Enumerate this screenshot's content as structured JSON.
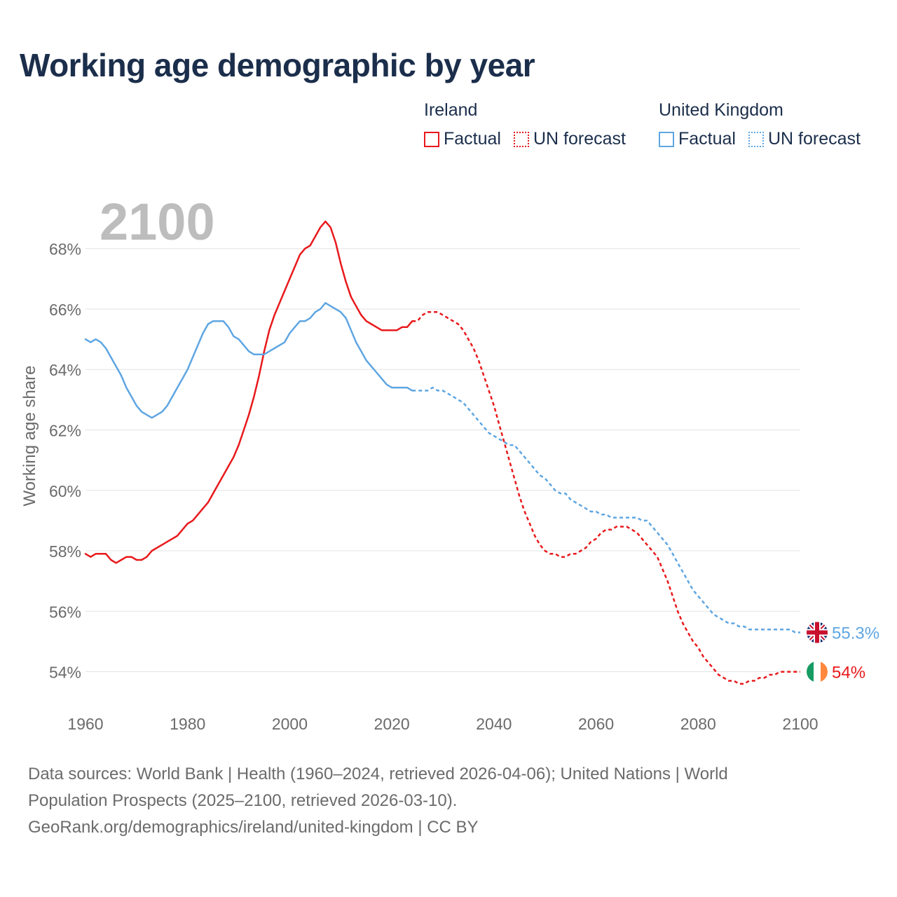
{
  "title": "Working age demographic by year",
  "legend": {
    "groups": [
      {
        "name": "Ireland",
        "color": "#e8191c",
        "factual_label": "Factual",
        "forecast_label": "UN forecast"
      },
      {
        "name": "United Kingdom",
        "color": "#5fa6e2",
        "factual_label": "Factual",
        "forecast_label": "UN forecast"
      }
    ]
  },
  "footer": {
    "line1": "Data sources: World Bank | Health (1960–2024, retrieved 2026-04-06); United Nations | World",
    "line2": "Population Prospects (2025–2100, retrieved 2026-03-10).",
    "line3": "GeoRank.org/demographics/ireland/united-kingdom | CC BY"
  },
  "chart_data": {
    "type": "line",
    "title": "Working age demographic by year",
    "ylabel": "Working age share",
    "xlabel": "",
    "year_label": "2100",
    "xlim": [
      1960,
      2100
    ],
    "ylim": [
      52.9,
      69.5
    ],
    "x_ticks": [
      1960,
      1980,
      2000,
      2020,
      2040,
      2060,
      2080,
      2100
    ],
    "y_ticks": [
      54,
      56,
      58,
      60,
      62,
      64,
      66,
      68
    ],
    "y_tick_suffix": "%",
    "gridlines": true,
    "series": [
      {
        "name": "Ireland",
        "color": "#e8191c",
        "end_label": "54%",
        "flag": "ireland-flag",
        "factual": [
          [
            1960,
            57.9
          ],
          [
            1961,
            57.8
          ],
          [
            1962,
            57.9
          ],
          [
            1963,
            57.9
          ],
          [
            1964,
            57.9
          ],
          [
            1965,
            57.7
          ],
          [
            1966,
            57.6
          ],
          [
            1967,
            57.7
          ],
          [
            1968,
            57.8
          ],
          [
            1969,
            57.8
          ],
          [
            1970,
            57.7
          ],
          [
            1971,
            57.7
          ],
          [
            1972,
            57.8
          ],
          [
            1973,
            58.0
          ],
          [
            1974,
            58.1
          ],
          [
            1975,
            58.2
          ],
          [
            1976,
            58.3
          ],
          [
            1977,
            58.4
          ],
          [
            1978,
            58.5
          ],
          [
            1979,
            58.7
          ],
          [
            1980,
            58.9
          ],
          [
            1981,
            59.0
          ],
          [
            1982,
            59.2
          ],
          [
            1983,
            59.4
          ],
          [
            1984,
            59.6
          ],
          [
            1985,
            59.9
          ],
          [
            1986,
            60.2
          ],
          [
            1987,
            60.5
          ],
          [
            1988,
            60.8
          ],
          [
            1989,
            61.1
          ],
          [
            1990,
            61.5
          ],
          [
            1991,
            62.0
          ],
          [
            1992,
            62.5
          ],
          [
            1993,
            63.1
          ],
          [
            1994,
            63.8
          ],
          [
            1995,
            64.6
          ],
          [
            1996,
            65.3
          ],
          [
            1997,
            65.8
          ],
          [
            1998,
            66.2
          ],
          [
            1999,
            66.6
          ],
          [
            2000,
            67.0
          ],
          [
            2001,
            67.4
          ],
          [
            2002,
            67.8
          ],
          [
            2003,
            68.0
          ],
          [
            2004,
            68.1
          ],
          [
            2005,
            68.4
          ],
          [
            2006,
            68.7
          ],
          [
            2007,
            68.9
          ],
          [
            2008,
            68.7
          ],
          [
            2009,
            68.2
          ],
          [
            2010,
            67.5
          ],
          [
            2011,
            66.9
          ],
          [
            2012,
            66.4
          ],
          [
            2013,
            66.1
          ],
          [
            2014,
            65.8
          ],
          [
            2015,
            65.6
          ],
          [
            2016,
            65.5
          ],
          [
            2017,
            65.4
          ],
          [
            2018,
            65.3
          ],
          [
            2019,
            65.3
          ],
          [
            2020,
            65.3
          ],
          [
            2021,
            65.3
          ],
          [
            2022,
            65.4
          ],
          [
            2023,
            65.4
          ],
          [
            2024,
            65.6
          ]
        ],
        "forecast": [
          [
            2024,
            65.6
          ],
          [
            2025,
            65.6
          ],
          [
            2026,
            65.8
          ],
          [
            2027,
            65.9
          ],
          [
            2028,
            65.9
          ],
          [
            2029,
            65.9
          ],
          [
            2030,
            65.8
          ],
          [
            2031,
            65.7
          ],
          [
            2032,
            65.6
          ],
          [
            2033,
            65.5
          ],
          [
            2034,
            65.3
          ],
          [
            2035,
            65.0
          ],
          [
            2036,
            64.7
          ],
          [
            2037,
            64.3
          ],
          [
            2038,
            63.8
          ],
          [
            2039,
            63.3
          ],
          [
            2040,
            62.8
          ],
          [
            2041,
            62.2
          ],
          [
            2042,
            61.6
          ],
          [
            2043,
            61.0
          ],
          [
            2044,
            60.4
          ],
          [
            2045,
            59.8
          ],
          [
            2046,
            59.3
          ],
          [
            2047,
            58.9
          ],
          [
            2048,
            58.5
          ],
          [
            2049,
            58.2
          ],
          [
            2050,
            58.0
          ],
          [
            2051,
            57.9
          ],
          [
            2052,
            57.9
          ],
          [
            2053,
            57.8
          ],
          [
            2054,
            57.8
          ],
          [
            2055,
            57.9
          ],
          [
            2056,
            57.9
          ],
          [
            2057,
            58.0
          ],
          [
            2058,
            58.1
          ],
          [
            2059,
            58.3
          ],
          [
            2060,
            58.4
          ],
          [
            2061,
            58.6
          ],
          [
            2062,
            58.7
          ],
          [
            2063,
            58.7
          ],
          [
            2064,
            58.8
          ],
          [
            2065,
            58.8
          ],
          [
            2066,
            58.8
          ],
          [
            2067,
            58.7
          ],
          [
            2068,
            58.6
          ],
          [
            2069,
            58.4
          ],
          [
            2070,
            58.2
          ],
          [
            2071,
            58.0
          ],
          [
            2072,
            57.8
          ],
          [
            2073,
            57.4
          ],
          [
            2074,
            57.0
          ],
          [
            2075,
            56.5
          ],
          [
            2076,
            56.0
          ],
          [
            2077,
            55.6
          ],
          [
            2078,
            55.3
          ],
          [
            2079,
            55.0
          ],
          [
            2080,
            54.8
          ],
          [
            2081,
            54.5
          ],
          [
            2082,
            54.3
          ],
          [
            2083,
            54.1
          ],
          [
            2084,
            53.9
          ],
          [
            2085,
            53.8
          ],
          [
            2086,
            53.7
          ],
          [
            2087,
            53.7
          ],
          [
            2088,
            53.6
          ],
          [
            2089,
            53.6
          ],
          [
            2090,
            53.7
          ],
          [
            2091,
            53.7
          ],
          [
            2092,
            53.8
          ],
          [
            2093,
            53.8
          ],
          [
            2094,
            53.9
          ],
          [
            2095,
            53.9
          ],
          [
            2096,
            54.0
          ],
          [
            2097,
            54.0
          ],
          [
            2098,
            54.0
          ],
          [
            2099,
            54.0
          ],
          [
            2100,
            54.0
          ]
        ]
      },
      {
        "name": "United Kingdom",
        "color": "#5fa6e2",
        "end_label": "55.3%",
        "flag": "united-kingdom-flag",
        "factual": [
          [
            1960,
            65.0
          ],
          [
            1961,
            64.9
          ],
          [
            1962,
            65.0
          ],
          [
            1963,
            64.9
          ],
          [
            1964,
            64.7
          ],
          [
            1965,
            64.4
          ],
          [
            1966,
            64.1
          ],
          [
            1967,
            63.8
          ],
          [
            1968,
            63.4
          ],
          [
            1969,
            63.1
          ],
          [
            1970,
            62.8
          ],
          [
            1971,
            62.6
          ],
          [
            1972,
            62.5
          ],
          [
            1973,
            62.4
          ],
          [
            1974,
            62.5
          ],
          [
            1975,
            62.6
          ],
          [
            1976,
            62.8
          ],
          [
            1977,
            63.1
          ],
          [
            1978,
            63.4
          ],
          [
            1979,
            63.7
          ],
          [
            1980,
            64.0
          ],
          [
            1981,
            64.4
          ],
          [
            1982,
            64.8
          ],
          [
            1983,
            65.2
          ],
          [
            1984,
            65.5
          ],
          [
            1985,
            65.6
          ],
          [
            1986,
            65.6
          ],
          [
            1987,
            65.6
          ],
          [
            1988,
            65.4
          ],
          [
            1989,
            65.1
          ],
          [
            1990,
            65.0
          ],
          [
            1991,
            64.8
          ],
          [
            1992,
            64.6
          ],
          [
            1993,
            64.5
          ],
          [
            1994,
            64.5
          ],
          [
            1995,
            64.5
          ],
          [
            1996,
            64.6
          ],
          [
            1997,
            64.7
          ],
          [
            1998,
            64.8
          ],
          [
            1999,
            64.9
          ],
          [
            2000,
            65.2
          ],
          [
            2001,
            65.4
          ],
          [
            2002,
            65.6
          ],
          [
            2003,
            65.6
          ],
          [
            2004,
            65.7
          ],
          [
            2005,
            65.9
          ],
          [
            2006,
            66.0
          ],
          [
            2007,
            66.2
          ],
          [
            2008,
            66.1
          ],
          [
            2009,
            66.0
          ],
          [
            2010,
            65.9
          ],
          [
            2011,
            65.7
          ],
          [
            2012,
            65.3
          ],
          [
            2013,
            64.9
          ],
          [
            2014,
            64.6
          ],
          [
            2015,
            64.3
          ],
          [
            2016,
            64.1
          ],
          [
            2017,
            63.9
          ],
          [
            2018,
            63.7
          ],
          [
            2019,
            63.5
          ],
          [
            2020,
            63.4
          ],
          [
            2021,
            63.4
          ],
          [
            2022,
            63.4
          ],
          [
            2023,
            63.4
          ],
          [
            2024,
            63.3
          ]
        ],
        "forecast": [
          [
            2024,
            63.3
          ],
          [
            2025,
            63.3
          ],
          [
            2026,
            63.3
          ],
          [
            2027,
            63.3
          ],
          [
            2028,
            63.4
          ],
          [
            2029,
            63.3
          ],
          [
            2030,
            63.3
          ],
          [
            2031,
            63.2
          ],
          [
            2032,
            63.1
          ],
          [
            2033,
            63.0
          ],
          [
            2034,
            62.9
          ],
          [
            2035,
            62.7
          ],
          [
            2036,
            62.5
          ],
          [
            2037,
            62.3
          ],
          [
            2038,
            62.1
          ],
          [
            2039,
            61.9
          ],
          [
            2040,
            61.8
          ],
          [
            2041,
            61.7
          ],
          [
            2042,
            61.6
          ],
          [
            2043,
            61.5
          ],
          [
            2044,
            61.5
          ],
          [
            2045,
            61.3
          ],
          [
            2046,
            61.1
          ],
          [
            2047,
            60.9
          ],
          [
            2048,
            60.7
          ],
          [
            2049,
            60.5
          ],
          [
            2050,
            60.4
          ],
          [
            2051,
            60.2
          ],
          [
            2052,
            60.0
          ],
          [
            2053,
            59.9
          ],
          [
            2054,
            59.9
          ],
          [
            2055,
            59.7
          ],
          [
            2056,
            59.6
          ],
          [
            2057,
            59.5
          ],
          [
            2058,
            59.4
          ],
          [
            2059,
            59.3
          ],
          [
            2060,
            59.3
          ],
          [
            2061,
            59.2
          ],
          [
            2062,
            59.2
          ],
          [
            2063,
            59.1
          ],
          [
            2064,
            59.1
          ],
          [
            2065,
            59.1
          ],
          [
            2066,
            59.1
          ],
          [
            2067,
            59.1
          ],
          [
            2068,
            59.1
          ],
          [
            2069,
            59.0
          ],
          [
            2070,
            59.0
          ],
          [
            2071,
            58.8
          ],
          [
            2072,
            58.6
          ],
          [
            2073,
            58.4
          ],
          [
            2074,
            58.2
          ],
          [
            2075,
            57.9
          ],
          [
            2076,
            57.6
          ],
          [
            2077,
            57.3
          ],
          [
            2078,
            57.0
          ],
          [
            2079,
            56.7
          ],
          [
            2080,
            56.5
          ],
          [
            2081,
            56.3
          ],
          [
            2082,
            56.1
          ],
          [
            2083,
            55.9
          ],
          [
            2084,
            55.8
          ],
          [
            2085,
            55.7
          ],
          [
            2086,
            55.6
          ],
          [
            2087,
            55.6
          ],
          [
            2088,
            55.5
          ],
          [
            2089,
            55.5
          ],
          [
            2090,
            55.4
          ],
          [
            2091,
            55.4
          ],
          [
            2092,
            55.4
          ],
          [
            2093,
            55.4
          ],
          [
            2094,
            55.4
          ],
          [
            2095,
            55.4
          ],
          [
            2096,
            55.4
          ],
          [
            2097,
            55.4
          ],
          [
            2098,
            55.4
          ],
          [
            2099,
            55.3
          ],
          [
            2100,
            55.3
          ]
        ]
      }
    ]
  }
}
